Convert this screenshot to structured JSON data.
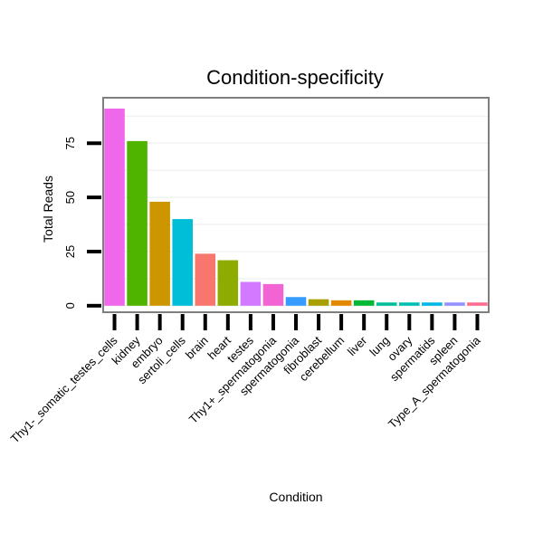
{
  "chart_data": {
    "type": "bar",
    "title": "Condition-specificity",
    "xlabel": "Condition",
    "ylabel": "Total Reads",
    "ylim": [
      -3,
      96
    ],
    "yticks": [
      0,
      25,
      50,
      75
    ],
    "grid": true,
    "categories": [
      "Thy1-_somatic_testes_cells",
      "kidney",
      "embryo",
      "sertoli_cells",
      "brain",
      "heart",
      "testes",
      "Thy1+_spermatogonia",
      "spermatogonia",
      "fibroblast",
      "cerebellum",
      "liver",
      "lung",
      "ovary",
      "spermatids",
      "spleen",
      "Type_A_spermatogonia"
    ],
    "values": [
      91,
      76,
      48,
      40,
      24,
      21,
      11,
      10,
      4,
      3,
      2.5,
      2.5,
      1.5,
      1.5,
      1.5,
      1.5,
      1.5
    ],
    "colors": [
      "#EF67EB",
      "#4EB400",
      "#CD9600",
      "#00BED7",
      "#F8766D",
      "#8EAB00",
      "#D279FF",
      "#F263D4",
      "#359BFF",
      "#A8A000",
      "#E38900",
      "#00B934",
      "#00BF97",
      "#00C0B3",
      "#00B8E7",
      "#9590FF",
      "#FF6C91"
    ]
  }
}
